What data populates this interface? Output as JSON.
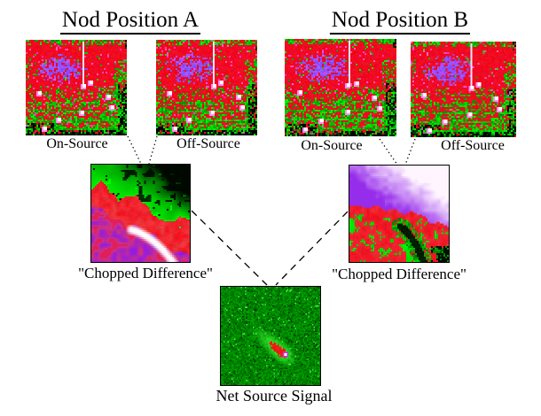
{
  "nod_a": {
    "title": "Nod Position A",
    "on_label": "On-Source",
    "off_label": "Off-Source",
    "chopped_label": "\"Chopped Difference\""
  },
  "nod_b": {
    "title": "Nod Position B",
    "on_label": "On-Source",
    "off_label": "Off-Source",
    "chopped_label": "\"Chopped Difference\""
  },
  "net": {
    "label": "Net Source Signal"
  },
  "palette": {
    "background": "#ffffff",
    "text": "#000000",
    "connector_line": "#000000",
    "raw_red": "#f00014",
    "raw_purple": "#7040f8",
    "raw_green": "#00c800",
    "raw_white_spot": "#ffffff",
    "chop_green": "#00cc00",
    "chop_red": "#e81420",
    "chop_purple": "#a83cf0",
    "chop_white_streak": "#fff8ff",
    "net_background_green": "#0c9a10",
    "net_blob_red": "#e00014",
    "net_core_ring": "#cc2ce8",
    "net_core": "#ffffff"
  }
}
